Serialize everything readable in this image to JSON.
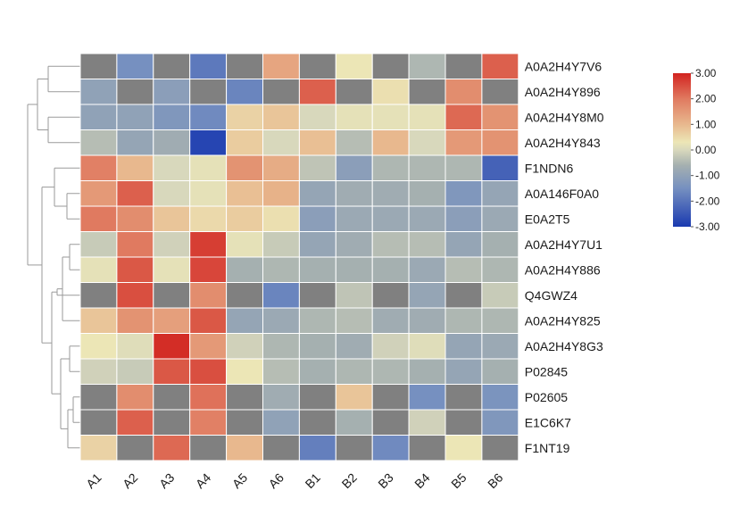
{
  "chart_data": {
    "type": "heatmap",
    "title": "",
    "xlabel": "",
    "ylabel": "",
    "columns": [
      "A1",
      "A2",
      "A3",
      "A4",
      "A5",
      "A6",
      "B1",
      "B2",
      "B3",
      "B4",
      "B5",
      "B6"
    ],
    "rows": [
      "A0A2H4Y7V6",
      "A0A2H4Y896",
      "A0A2H4Y8M0",
      "A0A2H4Y843",
      "F1NDN6",
      "A0A146F0A0",
      "E0A2T5",
      "A0A2H4Y7U1",
      "A0A2H4Y886",
      "Q4GWZ4",
      "A0A2H4Y825",
      "A0A2H4Y8G3",
      "P02845",
      "P02605",
      "E1C6K7",
      "F1NT19"
    ],
    "values": [
      [
        null,
        -1.5,
        null,
        -1.9,
        null,
        1.3,
        null,
        0.3,
        null,
        -0.5,
        null,
        2.3
      ],
      [
        -1.0,
        null,
        -1.1,
        null,
        -1.7,
        null,
        2.3,
        null,
        0.4,
        null,
        1.7,
        null
      ],
      [
        -1.0,
        -1.0,
        -1.3,
        -1.6,
        0.6,
        0.8,
        0.0,
        0.2,
        0.2,
        0.2,
        2.2,
        1.6
      ],
      [
        -0.4,
        -0.9,
        -0.7,
        -2.8,
        0.7,
        0.0,
        0.9,
        -0.4,
        1.0,
        0.0,
        1.5,
        1.6
      ],
      [
        1.9,
        1.0,
        0.0,
        0.2,
        1.6,
        1.2,
        -0.3,
        -1.1,
        -0.5,
        -0.5,
        -0.5,
        -2.3
      ],
      [
        1.5,
        2.3,
        0.0,
        0.2,
        0.9,
        1.1,
        -0.9,
        -0.7,
        -0.7,
        -0.6,
        -1.3,
        -0.9
      ],
      [
        2.0,
        1.7,
        0.8,
        0.5,
        0.7,
        0.4,
        -1.1,
        -0.8,
        -0.8,
        -0.8,
        -1.1,
        -0.8
      ],
      [
        -0.2,
        2.0,
        -0.1,
        2.7,
        0.2,
        -0.2,
        -0.9,
        -0.7,
        -0.4,
        -0.4,
        -0.9,
        -0.6
      ],
      [
        0.2,
        2.4,
        0.2,
        2.6,
        -0.6,
        -0.5,
        -0.6,
        -0.6,
        -0.6,
        -0.8,
        -0.4,
        -0.5
      ],
      [
        null,
        2.5,
        null,
        1.7,
        null,
        -1.7,
        null,
        -0.3,
        null,
        -0.9,
        null,
        -0.2
      ],
      [
        0.8,
        1.6,
        1.4,
        2.4,
        -0.9,
        -0.8,
        -0.5,
        -0.4,
        -0.7,
        -0.7,
        -0.5,
        -0.5
      ],
      [
        0.3,
        0.1,
        2.9,
        1.5,
        -0.1,
        -0.5,
        -0.6,
        -0.7,
        -0.1,
        0.1,
        -0.9,
        -0.8
      ],
      [
        -0.1,
        -0.2,
        2.4,
        2.5,
        0.3,
        -0.4,
        -0.6,
        -0.5,
        -0.5,
        -0.6,
        -0.9,
        -0.6
      ],
      [
        null,
        1.7,
        null,
        2.1,
        null,
        -0.7,
        null,
        0.8,
        null,
        -1.5,
        null,
        -1.4
      ],
      [
        null,
        2.3,
        null,
        1.9,
        null,
        -1.0,
        null,
        -0.6,
        null,
        -0.1,
        null,
        -1.3
      ],
      [
        0.6,
        null,
        2.2,
        null,
        1.0,
        null,
        -1.8,
        null,
        -1.6,
        null,
        0.3,
        null
      ]
    ],
    "missing_color": "#808080",
    "color_scale": {
      "min": -3.0,
      "max": 3.0,
      "stops": [
        {
          "value": -3.0,
          "color": "#1a3ab0"
        },
        {
          "value": -1.5,
          "color": "#7690c0"
        },
        {
          "value": -0.6,
          "color": "#a5b0b0"
        },
        {
          "value": 0.0,
          "color": "#d8d8bc"
        },
        {
          "value": 0.3,
          "color": "#ece6b6"
        },
        {
          "value": 1.0,
          "color": "#e8b88e"
        },
        {
          "value": 2.0,
          "color": "#e07a60"
        },
        {
          "value": 3.0,
          "color": "#d22420"
        }
      ],
      "tick_labels": [
        "3.00",
        "2.00",
        "1.00",
        "0.00",
        "-1.00",
        "-2.00",
        "-3.00"
      ]
    },
    "row_dendrogram": true,
    "legend_position": "right"
  }
}
